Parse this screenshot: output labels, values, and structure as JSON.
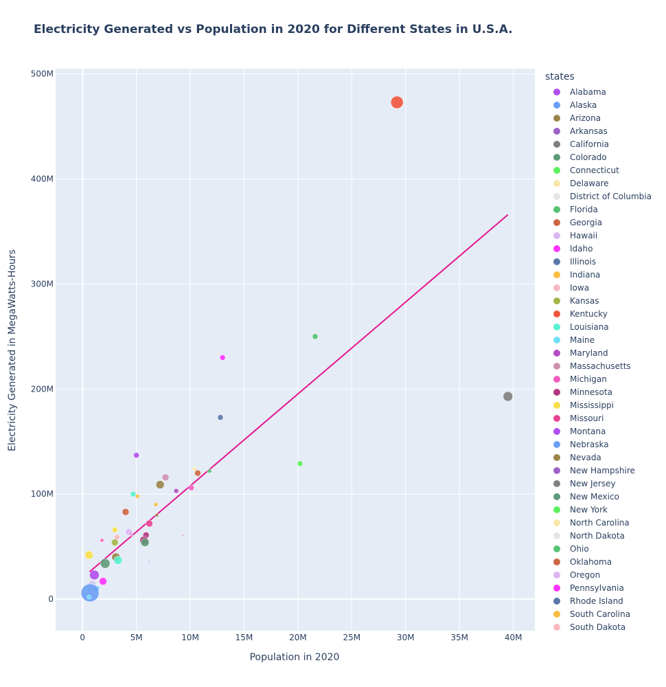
{
  "chart_data": {
    "type": "scatter",
    "title": "Electricity Generated vs Population in 2020 for Different States in U.S.A.",
    "xlabel": "Population in 2020",
    "ylabel": "Electricity Generated in MegaWatts-Hours",
    "xlim": [
      -2500000,
      42000000
    ],
    "ylim": [
      -30000000,
      505000000
    ],
    "x_ticks": [
      0,
      5000000,
      10000000,
      15000000,
      20000000,
      25000000,
      30000000,
      35000000,
      40000000
    ],
    "x_tick_labels": [
      "0",
      "5M",
      "10M",
      "15M",
      "20M",
      "25M",
      "30M",
      "35M",
      "40M"
    ],
    "y_ticks": [
      0,
      100000000,
      200000000,
      300000000,
      400000000,
      500000000
    ],
    "y_tick_labels": [
      "0",
      "100M",
      "200M",
      "300M",
      "400M",
      "500M"
    ],
    "grid": true,
    "legend_title": "states",
    "legend_position": "right",
    "trendline": {
      "color": "#e5148f",
      "x": [
        650000,
        39500000
      ],
      "y": [
        26000000,
        366000000
      ]
    },
    "points": [
      {
        "x": 29200000,
        "y": 473000000,
        "r": 9,
        "color": "#ef553b"
      },
      {
        "x": 39500000,
        "y": 193000000,
        "r": 7,
        "color": "#7f7f7f"
      },
      {
        "x": 21600000,
        "y": 250000000,
        "r": 4,
        "color": "#4ec469"
      },
      {
        "x": 13000000,
        "y": 230000000,
        "r": 4,
        "color": "#ff33ff"
      },
      {
        "x": 12800000,
        "y": 173000000,
        "r": 4,
        "color": "#5b77aa"
      },
      {
        "x": 20200000,
        "y": 129000000,
        "r": 4,
        "color": "#5cf15c"
      },
      {
        "x": 11800000,
        "y": 122000000,
        "r": 3,
        "color": "#59c176"
      },
      {
        "x": 10700000,
        "y": 120000000,
        "r": 4.5,
        "color": "#cc6644"
      },
      {
        "x": 10400000,
        "y": 124000000,
        "r": 3,
        "color": "#f7e7a8"
      },
      {
        "x": 10100000,
        "y": 106000000,
        "r": 4,
        "color": "#f45bbf"
      },
      {
        "x": 8700000,
        "y": 103000000,
        "r": 3.5,
        "color": "#b44dc5"
      },
      {
        "x": 7700000,
        "y": 116000000,
        "r": 5,
        "color": "#d091b1"
      },
      {
        "x": 7200000,
        "y": 109000000,
        "r": 6,
        "color": "#9a8448"
      },
      {
        "x": 5000000,
        "y": 137000000,
        "r": 4,
        "color": "#b04ef0"
      },
      {
        "x": 4700000,
        "y": 100000000,
        "r": 4,
        "color": "#55f2d2"
      },
      {
        "x": 5100000,
        "y": 98000000,
        "r": 3,
        "color": "#fbbd41"
      },
      {
        "x": 4000000,
        "y": 83000000,
        "r": 5,
        "color": "#cc6644"
      },
      {
        "x": 6800000,
        "y": 90000000,
        "r": 3,
        "color": "#fbbd41"
      },
      {
        "x": 6900000,
        "y": 80000000,
        "r": 2.5,
        "color": "#9a8448"
      },
      {
        "x": 6200000,
        "y": 72000000,
        "r": 5,
        "color": "#e84390"
      },
      {
        "x": 4300000,
        "y": 64000000,
        "r": 5,
        "color": "#dcb6f2"
      },
      {
        "x": 4500000,
        "y": 62000000,
        "r": 3,
        "color": "#e0a4e0"
      },
      {
        "x": 3000000,
        "y": 66000000,
        "r": 4,
        "color": "#f7df4a"
      },
      {
        "x": 3200000,
        "y": 59000000,
        "r": 4,
        "color": "#f8b9c0"
      },
      {
        "x": 5900000,
        "y": 61000000,
        "r": 4.5,
        "color": "#b3387e"
      },
      {
        "x": 5700000,
        "y": 56000000,
        "r": 6,
        "color": "#b3387e"
      },
      {
        "x": 5800000,
        "y": 54000000,
        "r": 6,
        "color": "#5d9a78"
      },
      {
        "x": 3000000,
        "y": 54000000,
        "r": 5,
        "color": "#a5b649"
      },
      {
        "x": 3100000,
        "y": 40000000,
        "r": 6,
        "color": "#9a8448"
      },
      {
        "x": 3300000,
        "y": 37000000,
        "r": 6,
        "color": "#55f2d2"
      },
      {
        "x": 2100000,
        "y": 34000000,
        "r": 7,
        "color": "#5d9a78"
      },
      {
        "x": 600000,
        "y": 42000000,
        "r": 6,
        "color": "#f7df4a"
      },
      {
        "x": 1800000,
        "y": 56000000,
        "r": 2.5,
        "color": "#ff55aa"
      },
      {
        "x": 1100000,
        "y": 23000000,
        "r": 7,
        "color": "#b04ef0"
      },
      {
        "x": 1900000,
        "y": 17000000,
        "r": 5.5,
        "color": "#ff33ff"
      },
      {
        "x": 900000,
        "y": 14000000,
        "r": 6,
        "color": "#ccccee"
      },
      {
        "x": 1300000,
        "y": 10000000,
        "r": 4,
        "color": "#4bb7f0"
      },
      {
        "x": 700000,
        "y": 6000000,
        "r": 13,
        "color": "#6a9ef5"
      },
      {
        "x": 600000,
        "y": 2000000,
        "r": 3,
        "color": "#6fe0f5"
      },
      {
        "x": 9300000,
        "y": 61000000,
        "r": 1,
        "color": "#b3387e"
      },
      {
        "x": 6200000,
        "y": 36000000,
        "r": 1,
        "color": "#b04ef0"
      },
      {
        "x": 7000000,
        "y": 18000000,
        "r": 1,
        "color": "#dcb6f2"
      }
    ],
    "series": [
      {
        "name": "Alabama",
        "color": "#b04ef0"
      },
      {
        "name": "Alaska",
        "color": "#6a9ef5"
      },
      {
        "name": "Arizona",
        "color": "#9a8448"
      },
      {
        "name": "Arkansas",
        "color": "#9d63c9"
      },
      {
        "name": "California",
        "color": "#7f7f7f"
      },
      {
        "name": "Colorado",
        "color": "#5d9a78"
      },
      {
        "name": "Connecticut",
        "color": "#5cf15c"
      },
      {
        "name": "Delaware",
        "color": "#f7e7a8"
      },
      {
        "name": "District of Columbia",
        "color": "#e5e5e5"
      },
      {
        "name": "Florida",
        "color": "#59c176"
      },
      {
        "name": "Georgia",
        "color": "#cc6644"
      },
      {
        "name": "Hawaii",
        "color": "#dcb6f2"
      },
      {
        "name": "Idaho",
        "color": "#ff33ff"
      },
      {
        "name": "Illinois",
        "color": "#5b77aa"
      },
      {
        "name": "Indiana",
        "color": "#fbbd41"
      },
      {
        "name": "Iowa",
        "color": "#f8b9c0"
      },
      {
        "name": "Kansas",
        "color": "#a5b649"
      },
      {
        "name": "Kentucky",
        "color": "#ef553b"
      },
      {
        "name": "Louisiana",
        "color": "#55f2d2"
      },
      {
        "name": "Maine",
        "color": "#6fe0f5"
      },
      {
        "name": "Maryland",
        "color": "#b44dc5"
      },
      {
        "name": "Massachusetts",
        "color": "#d091b1"
      },
      {
        "name": "Michigan",
        "color": "#f45bbf"
      },
      {
        "name": "Minnesota",
        "color": "#b3387e"
      },
      {
        "name": "Mississippi",
        "color": "#f7df4a"
      },
      {
        "name": "Missouri",
        "color": "#e84390"
      },
      {
        "name": "Montana",
        "color": "#b04ef0"
      },
      {
        "name": "Nebraska",
        "color": "#6a9ef5"
      },
      {
        "name": "Nevada",
        "color": "#9a8448"
      },
      {
        "name": "New Hampshire",
        "color": "#9d63c9"
      },
      {
        "name": "New Jersey",
        "color": "#7f7f7f"
      },
      {
        "name": "New Mexico",
        "color": "#5d9a78"
      },
      {
        "name": "New York",
        "color": "#5cf15c"
      },
      {
        "name": "North Carolina",
        "color": "#f7e7a8"
      },
      {
        "name": "North Dakota",
        "color": "#e5e5e5"
      },
      {
        "name": "Ohio",
        "color": "#59c176"
      },
      {
        "name": "Oklahoma",
        "color": "#cc6644"
      },
      {
        "name": "Oregon",
        "color": "#dcb6f2"
      },
      {
        "name": "Pennsylvania",
        "color": "#ff33ff"
      },
      {
        "name": "Rhode Island",
        "color": "#5b77aa"
      },
      {
        "name": "South Carolina",
        "color": "#fbbd41"
      },
      {
        "name": "South Dakota",
        "color": "#f8b9c0"
      }
    ]
  }
}
